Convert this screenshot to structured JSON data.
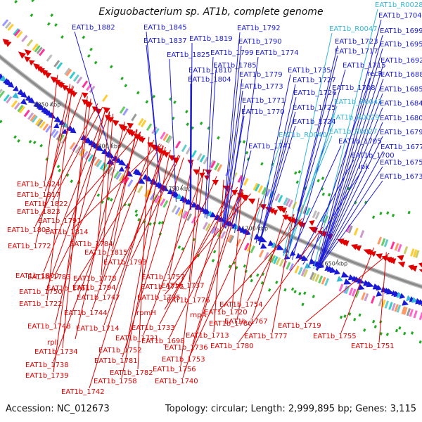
{
  "title": "Exiguobacterium sp. AT1b, complete genome",
  "footer": {
    "accession": "Accession: NC_012673",
    "summary": "Topology: circular; Length: 2,999,895 bp; Genes: 3,115"
  },
  "colors": {
    "forward_label": "#1a1ad6",
    "rna_label": "#35b7d6",
    "reverse_label": "#e00000",
    "backbone": "#8a8a8a"
  },
  "scale": [
    {
      "text": "1850 kbp"
    },
    {
      "text": "1800 kbp"
    },
    {
      "text": "1750 kbp"
    },
    {
      "text": "1700 kbp"
    },
    {
      "text": "1650 kbp"
    }
  ],
  "forward_genes": [
    {
      "text": "EAT1b_R0028",
      "kind": "rna"
    },
    {
      "text": "EAT1b_1704",
      "kind": "cds"
    },
    {
      "text": "EAT1b_1882",
      "kind": "cds"
    },
    {
      "text": "EAT1b_1845",
      "kind": "cds"
    },
    {
      "text": "EAT1b_1792",
      "kind": "cds"
    },
    {
      "text": "EAT1b_1699",
      "kind": "cds"
    },
    {
      "text": "EAT1b_R0047",
      "kind": "rna"
    },
    {
      "text": "EAT1b_1837",
      "kind": "cds"
    },
    {
      "text": "EAT1b_1819",
      "kind": "cds"
    },
    {
      "text": "EAT1b_1790",
      "kind": "cds"
    },
    {
      "text": "EAT1b_1723",
      "kind": "cds"
    },
    {
      "text": "EAT1b_1695",
      "kind": "cds"
    },
    {
      "text": "EAT1b_1799",
      "kind": "cds"
    },
    {
      "text": "EAT1b_1774",
      "kind": "cds"
    },
    {
      "text": "EAT1b_1717",
      "kind": "cds"
    },
    {
      "text": "EAT1b_1825",
      "kind": "cds"
    },
    {
      "text": "EAT1b_1692",
      "kind": "cds"
    },
    {
      "text": "EAT1b_1785",
      "kind": "cds"
    },
    {
      "text": "EAT1b_1715",
      "kind": "cds"
    },
    {
      "text": "EAT1b_1810",
      "kind": "cds"
    },
    {
      "text": "EAT1b_1735",
      "kind": "cds"
    },
    {
      "text": "EAT1b_1779",
      "kind": "cds"
    },
    {
      "text": "recR",
      "kind": "cds"
    },
    {
      "text": "EAT1b_1688",
      "kind": "cds"
    },
    {
      "text": "EAT1b_1804",
      "kind": "cds"
    },
    {
      "text": "EAT1b_1727",
      "kind": "cds"
    },
    {
      "text": "EAT1b_1773",
      "kind": "cds"
    },
    {
      "text": "EAT1b_1708",
      "kind": "cds"
    },
    {
      "text": "EAT1b_1685",
      "kind": "cds"
    },
    {
      "text": "EAT1b_1726",
      "kind": "cds"
    },
    {
      "text": "EAT1b_1771",
      "kind": "cds"
    },
    {
      "text": "EAT1b_R0041",
      "kind": "rna"
    },
    {
      "text": "EAT1b_1684",
      "kind": "cds"
    },
    {
      "text": "EAT1b_1725",
      "kind": "cds"
    },
    {
      "text": "EAT1b_1770",
      "kind": "cds"
    },
    {
      "text": "EAT1b_R0029",
      "kind": "rna"
    },
    {
      "text": "EAT1b_1680",
      "kind": "cds"
    },
    {
      "text": "EAT1b_1724",
      "kind": "cds"
    },
    {
      "text": "EAT1b_R0027",
      "kind": "rna"
    },
    {
      "text": "EAT1b_1679",
      "kind": "cds"
    },
    {
      "text": "EAT1b_R0040",
      "kind": "rna"
    },
    {
      "text": "EAT1b_1705",
      "kind": "cds"
    },
    {
      "text": "EAT1b_1741",
      "kind": "cds"
    },
    {
      "text": "EAT1b_1677",
      "kind": "cds"
    },
    {
      "text": "EAT1b_1700",
      "kind": "cds"
    },
    {
      "text": "EAT1b_1675",
      "kind": "cds"
    },
    {
      "text": "lpk",
      "kind": "cds"
    },
    {
      "text": "EAT1b_1673",
      "kind": "cds"
    }
  ],
  "reverse_genes": [
    {
      "text": "EAT1b_1824"
    },
    {
      "text": "EAT1b_1823"
    },
    {
      "text": "EAT1b_1817"
    },
    {
      "text": "EAT1b_1822"
    },
    {
      "text": "EAT1b_1803"
    },
    {
      "text": "EAT1b_1791"
    },
    {
      "text": "EAT1b_1814"
    },
    {
      "text": "EAT1b_1784"
    },
    {
      "text": "EAT1b_1815"
    },
    {
      "text": "EAT1b_1772"
    },
    {
      "text": "EAT1b_1793"
    },
    {
      "text": "EAT1b_1800"
    },
    {
      "text": "EAT1b_1783"
    },
    {
      "text": "EAT1b_1761"
    },
    {
      "text": "EAT1b_1778"
    },
    {
      "text": "EAT1b_1757"
    },
    {
      "text": "EAT1b_1794"
    },
    {
      "text": "EAT1b_1775"
    },
    {
      "text": "EAT1b_1750"
    },
    {
      "text": "EAT1b_1747"
    },
    {
      "text": "EAT1b_1795"
    },
    {
      "text": "EAT1b_1737"
    },
    {
      "text": "EAT1b_1722"
    },
    {
      "text": "EAT1b_1776"
    },
    {
      "text": "EAT1b_1754"
    },
    {
      "text": "EAT1b_1744"
    },
    {
      "text": "rpmH"
    },
    {
      "text": "rnpA"
    },
    {
      "text": "EAT1b_1720"
    },
    {
      "text": "EAT1b_1786"
    },
    {
      "text": "EAT1b_1767"
    },
    {
      "text": "EAT1b_1748"
    },
    {
      "text": "EAT1b_1714"
    },
    {
      "text": "EAT1b_1733"
    },
    {
      "text": "EAT1b_1719"
    },
    {
      "text": "EAT1b_1713"
    },
    {
      "text": "EAT1b_1777"
    },
    {
      "text": "EAT1b_1755"
    },
    {
      "text": "rplI"
    },
    {
      "text": "EAT1b_1721"
    },
    {
      "text": "EAT1b_1698"
    },
    {
      "text": "EAT1b_1780"
    },
    {
      "text": "EAT1b_1751"
    },
    {
      "text": "EAT1b_1734"
    },
    {
      "text": "EAT1b_1752"
    },
    {
      "text": "EAT1b_1736"
    },
    {
      "text": "EAT1b_1781"
    },
    {
      "text": "EAT1b_1753"
    },
    {
      "text": "EAT1b_1738"
    },
    {
      "text": "EAT1b_1782"
    },
    {
      "text": "EAT1b_1756"
    },
    {
      "text": "EAT1b_1739"
    },
    {
      "text": "EAT1b_1758"
    },
    {
      "text": "EAT1b_1740"
    },
    {
      "text": "EAT1b_1742"
    }
  ]
}
